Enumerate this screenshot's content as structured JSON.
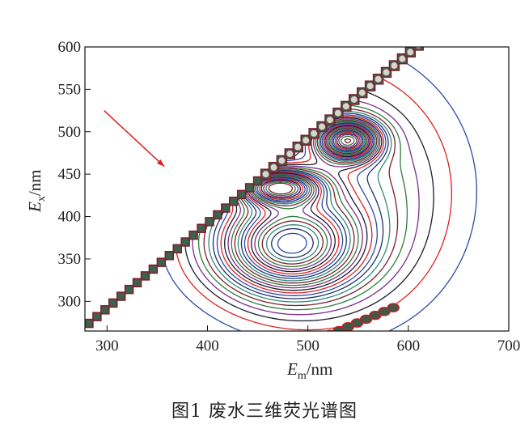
{
  "chart_data": {
    "type": "contour",
    "title": "",
    "xlabel": {
      "main": "E",
      "sub": "m",
      "unit": "/nm"
    },
    "ylabel": {
      "main": "E",
      "sub": "x",
      "unit": "/nm"
    },
    "xlim": [
      278,
      700
    ],
    "ylim": [
      265,
      600
    ],
    "xticks": [
      "300",
      "400",
      "500",
      "600",
      "700"
    ],
    "yticks": [
      "300",
      "350",
      "400",
      "450",
      "500",
      "550",
      "600"
    ],
    "grid": false,
    "peaks": [
      {
        "em": 540,
        "ex": 490
      },
      {
        "em": 470,
        "ex": 435
      },
      {
        "em": 480,
        "ex": 365
      }
    ],
    "contour_colors": [
      "#2b4aa8",
      "#e0201c",
      "#1a1a2e",
      "#7a2a8a",
      "#2f7a3a",
      "#7a1f2a",
      "#2f8a7a",
      "#1f2f6a"
    ],
    "annotation": {
      "type": "arrow",
      "color": "#e02020",
      "from": {
        "em": 297,
        "ex": 525
      },
      "to": {
        "em": 357,
        "ex": 459
      }
    }
  },
  "caption": "图1   废水三维荧光谱图"
}
